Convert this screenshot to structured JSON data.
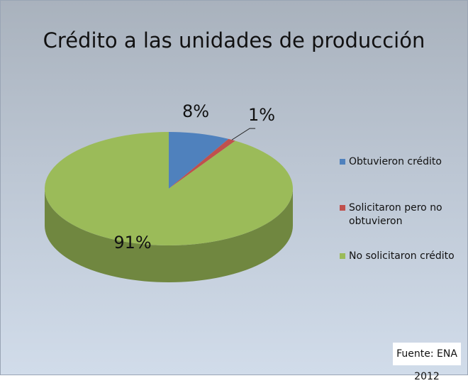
{
  "chart_data": {
    "type": "pie",
    "title": "Crédito a las unidades de producción",
    "categories": [
      "Obtuvieron crédito",
      "Solicitaron pero no obtuvieron",
      "No solicitaron crédito"
    ],
    "values": [
      8,
      1,
      91
    ],
    "value_labels": [
      "8%",
      "1%",
      "91%"
    ],
    "colors": [
      "#4f81bd",
      "#c0504d",
      "#9bbb59"
    ],
    "legend": "right",
    "annotation": "Fuente: ENA 2012"
  }
}
